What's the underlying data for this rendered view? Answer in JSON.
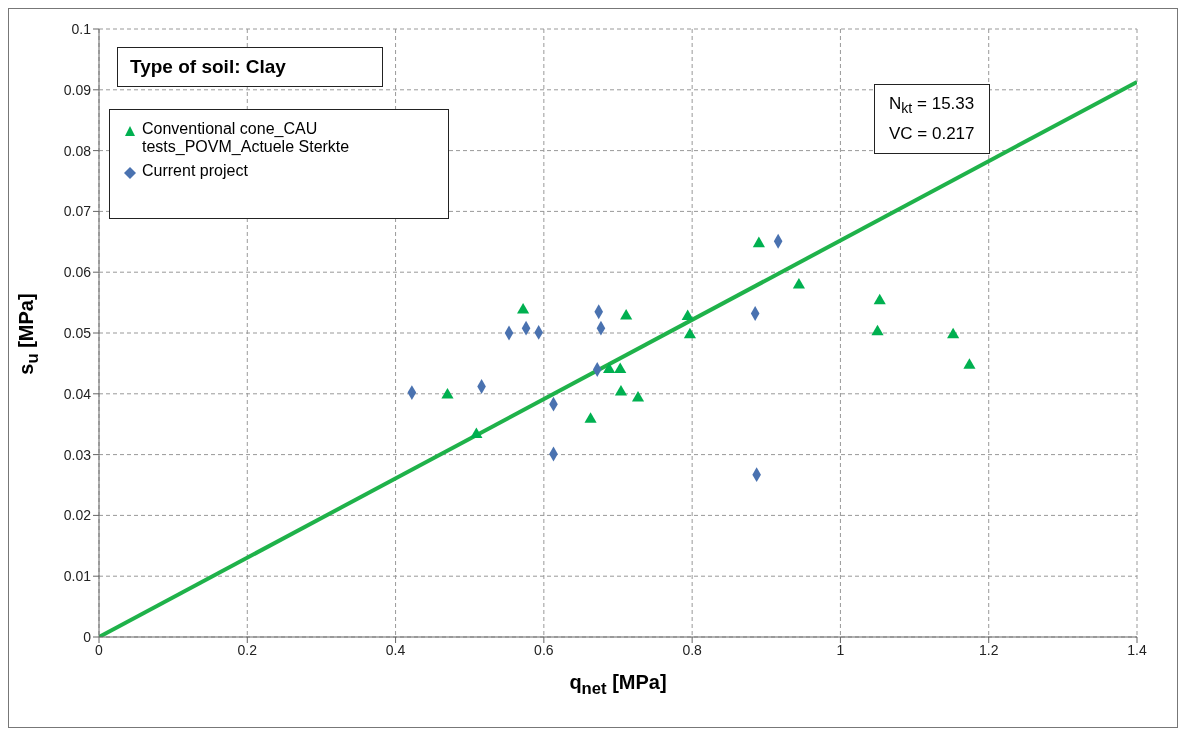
{
  "chart_data": {
    "type": "scatter",
    "xlabel": "q$_{net}$ [MPa]",
    "ylabel": "s$_{u}$ [MPa]",
    "xlim": [
      0,
      1.4
    ],
    "xticks": [
      0,
      0.2,
      0.4,
      0.6,
      0.8,
      1,
      1.2,
      1.4
    ],
    "ylim": [
      0,
      0.1
    ],
    "yticks": [
      0,
      0.01,
      0.02,
      0.03,
      0.04,
      0.05,
      0.06,
      0.07,
      0.08,
      0.09,
      0.1
    ],
    "grid": true,
    "legend": "top left",
    "annotations": [
      "Type of soil: Clay",
      "N$_{kt}$ = 15.33",
      "VC = 0.217"
    ],
    "series": [
      {
        "name": "Conventional cone_CAU tests_POVM_Actuele Sterkte",
        "color": "#00b050",
        "marker": "triangle",
        "x": [
          0.572,
          0.711,
          0.794,
          0.797,
          0.47,
          0.509,
          0.663,
          0.688,
          0.703,
          0.704,
          0.727,
          0.89,
          0.944,
          1.053,
          1.05,
          1.152,
          1.174
        ],
        "values": [
          0.0538,
          0.0528,
          0.0527,
          0.0497,
          0.0398,
          0.0333,
          0.0358,
          0.044,
          0.044,
          0.0403,
          0.0393,
          0.0647,
          0.0579,
          0.0553,
          0.0502,
          0.0497,
          0.0447
        ]
      },
      {
        "name": "Current project",
        "color": "#4a72b0",
        "marker": "diamond",
        "x": [
          0.422,
          0.516,
          0.553,
          0.576,
          0.593,
          0.613,
          0.613,
          0.674,
          0.677,
          0.672,
          0.916,
          0.885,
          0.887
        ],
        "values": [
          0.0402,
          0.0412,
          0.05,
          0.0508,
          0.0501,
          0.0383,
          0.0301,
          0.0535,
          0.0508,
          0.044,
          0.0651,
          0.0532,
          0.0267
        ]
      },
      {
        "type": "line",
        "color": "#1fb24a",
        "marker": "none",
        "line_style": "solid",
        "x": [
          0,
          1.4
        ],
        "values": [
          0,
          0.0913
        ]
      }
    ]
  }
}
